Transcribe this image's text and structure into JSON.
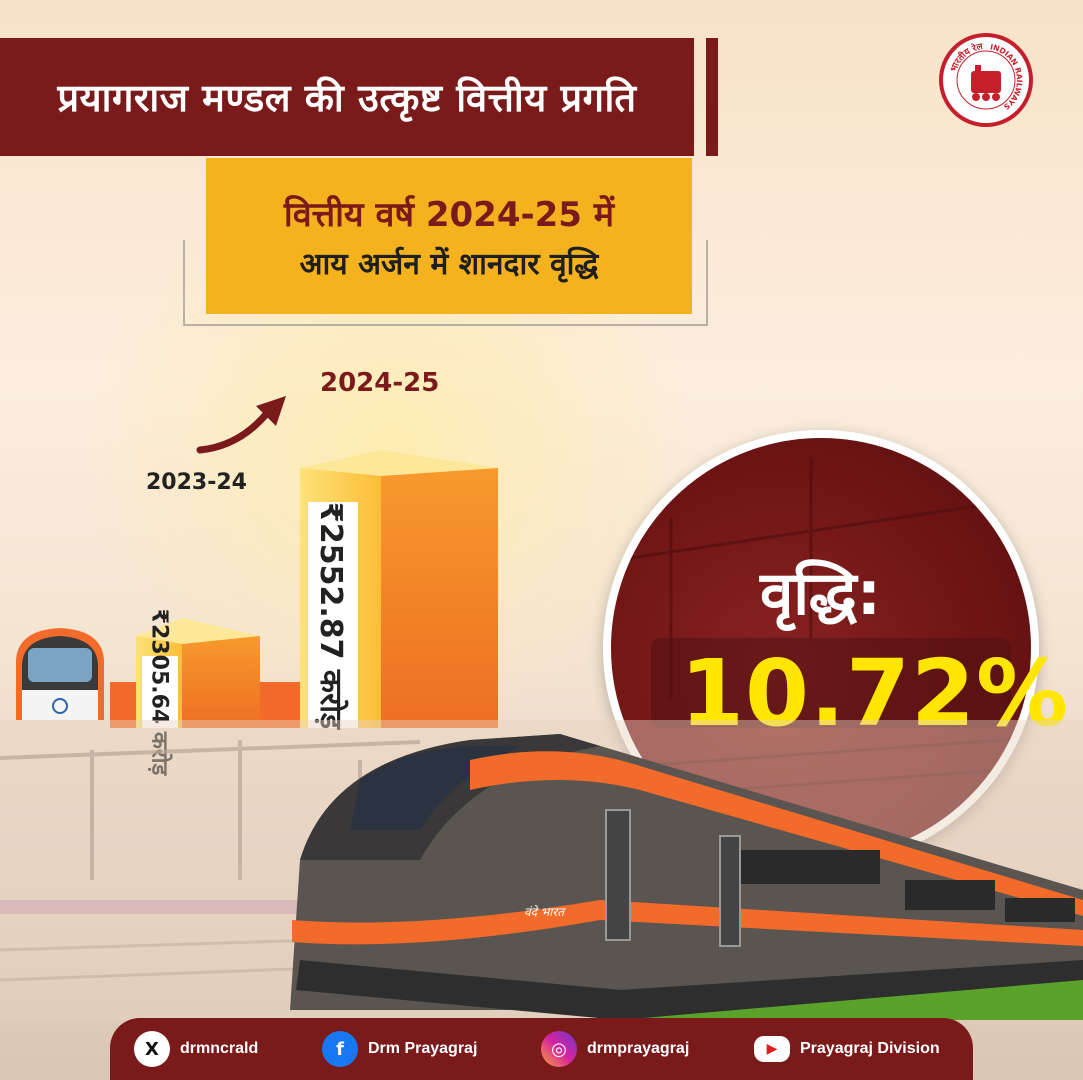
{
  "header": {
    "title": "प्रयागराज मण्डल की उत्कृष्ट वित्तीय प्रगति",
    "subtitle_line1": "वित्तीय वर्ष 2024-25 में",
    "subtitle_line2": "आय अर्जन में शानदार वृद्धि"
  },
  "logo": {
    "text_hindi": "भारतीय रेल",
    "text_english": "INDIAN RAILWAYS"
  },
  "chart_data": {
    "type": "bar",
    "categories": [
      "2023-24",
      "2024-25"
    ],
    "values": [
      2305.64,
      2552.87
    ],
    "value_labels": [
      "₹2305.64 करोड़",
      "₹2552.87 करोड़"
    ],
    "unit": "करोड़"
  },
  "growth": {
    "label": "वृद्धि:",
    "value": "10.72%"
  },
  "train": {
    "badge": "वंदे भारत"
  },
  "footer": {
    "items": [
      {
        "icon": "x-icon",
        "label": "drmncrald"
      },
      {
        "icon": "facebook-icon",
        "label": "Drm Prayagraj"
      },
      {
        "icon": "instagram-icon",
        "label": "drmprayagraj"
      },
      {
        "icon": "youtube-icon",
        "label": "Prayagraj Division"
      }
    ]
  },
  "colors": {
    "maroon": "#7a1a1a",
    "saffron": "#f5b21f",
    "orange": "#f26b2a",
    "yellow": "#ffe600"
  }
}
